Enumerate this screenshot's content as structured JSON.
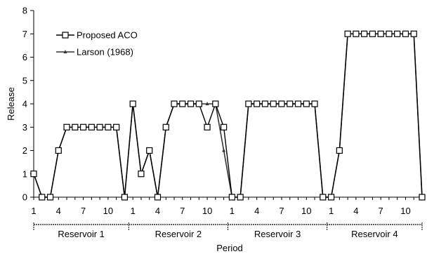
{
  "chart_data": {
    "type": "line",
    "xlabel": "Period",
    "ylabel": "Release",
    "ylim": [
      0,
      8
    ],
    "y_ticks": [
      "0",
      "1",
      "2",
      "3",
      "4",
      "5",
      "6",
      "7",
      "8"
    ],
    "x_tick_labels": [
      "1",
      "4",
      "7",
      "10"
    ],
    "periods_per_group": 12,
    "groups": [
      "Reservoir 1",
      "Reservoir 2",
      "Reservoir 3",
      "Reservoir 4"
    ],
    "legend_position": "top-left",
    "grid": false,
    "series": [
      {
        "name": "Proposed ACO",
        "marker": "open-square",
        "color": "#000000",
        "values": [
          1,
          0,
          0,
          2,
          3,
          3,
          3,
          3,
          3,
          3,
          3,
          0,
          4,
          1,
          2,
          0,
          3,
          4,
          4,
          4,
          4,
          3,
          4,
          3,
          0,
          0,
          4,
          4,
          4,
          4,
          4,
          4,
          4,
          4,
          4,
          0,
          0,
          2,
          7,
          7,
          7,
          7,
          7,
          7,
          7,
          7,
          7,
          0
        ]
      },
      {
        "name": "Larson (1968)",
        "marker": "filled-triangle",
        "color": "#333333",
        "values": [
          1,
          0,
          0,
          2,
          3,
          3,
          3,
          3,
          3,
          3,
          3,
          0,
          4,
          1,
          2,
          0,
          3,
          4,
          4,
          4,
          4,
          4,
          4,
          2,
          0,
          0,
          4,
          4,
          4,
          4,
          4,
          4,
          4,
          4,
          4,
          0,
          0,
          2,
          7,
          7,
          7,
          7,
          7,
          7,
          7,
          7,
          7,
          0
        ]
      }
    ]
  }
}
